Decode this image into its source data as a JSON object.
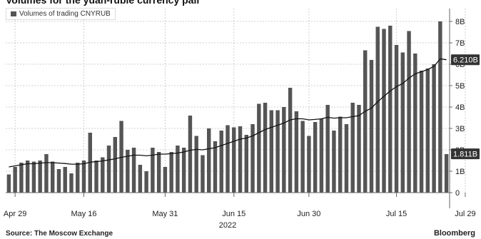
{
  "title": "Volumes for the yuan-ruble currency pair",
  "source": "Source: The Moscow Exchange",
  "brand": "Bloomberg",
  "chart_data": {
    "type": "bar",
    "legend": "Volumes of trading CNYRUB",
    "legend_position": "top-left",
    "grid": true,
    "y_axis_position": "right",
    "ylim": [
      0,
      8.6
    ],
    "yticks": [
      0,
      1,
      2,
      3,
      4,
      5,
      6,
      7,
      8
    ],
    "ytick_labels": [
      "0",
      "1B",
      "2B",
      "3B",
      "4B",
      "5B",
      "6B",
      "7B",
      "8B"
    ],
    "xtick_labels": [
      "Apr 29",
      "May 16",
      "May 31",
      "Jun 15",
      "Jun 30",
      "Jul 15",
      "Jul 29"
    ],
    "xtick_bar_index": [
      1,
      12,
      25,
      36,
      48,
      62,
      73
    ],
    "year_label": "2022",
    "values": [
      0.85,
      1.2,
      1.4,
      1.5,
      1.45,
      1.5,
      1.8,
      1.45,
      1.1,
      1.2,
      0.9,
      1.4,
      1.5,
      2.8,
      1.5,
      1.65,
      2.2,
      2.6,
      3.35,
      2.0,
      2.1,
      1.3,
      1.0,
      2.1,
      1.9,
      1.2,
      1.9,
      2.2,
      2.1,
      3.6,
      2.65,
      1.75,
      3.0,
      2.4,
      2.9,
      3.15,
      3.05,
      3.1,
      2.7,
      3.2,
      4.15,
      4.2,
      3.85,
      3.85,
      4.0,
      4.9,
      3.8,
      3.35,
      2.65,
      3.3,
      3.45,
      4.1,
      2.9,
      3.55,
      3.2,
      4.2,
      4.1,
      6.65,
      6.2,
      7.75,
      7.65,
      7.8,
      6.9,
      6.55,
      7.55,
      6.5,
      5.7,
      5.8,
      6.0,
      8.0,
      1.8
    ],
    "moving_average": [
      1.2,
      1.25,
      1.3,
      1.35,
      1.35,
      1.38,
      1.4,
      1.4,
      1.38,
      1.36,
      1.33,
      1.33,
      1.35,
      1.42,
      1.45,
      1.48,
      1.53,
      1.58,
      1.65,
      1.7,
      1.75,
      1.75,
      1.72,
      1.75,
      1.8,
      1.8,
      1.82,
      1.85,
      1.9,
      1.98,
      2.02,
      2.0,
      2.05,
      2.1,
      2.2,
      2.3,
      2.4,
      2.5,
      2.55,
      2.65,
      2.8,
      2.95,
      3.05,
      3.15,
      3.25,
      3.4,
      3.45,
      3.45,
      3.4,
      3.42,
      3.45,
      3.52,
      3.48,
      3.5,
      3.5,
      3.55,
      3.6,
      3.8,
      3.95,
      4.25,
      4.5,
      4.75,
      4.95,
      5.1,
      5.35,
      5.55,
      5.65,
      5.75,
      5.9,
      6.25,
      6.21
    ],
    "last_value_labels": [
      {
        "value": 6.21,
        "label": "6.210B",
        "series": "moving_average"
      },
      {
        "value": 1.811,
        "label": "1.811B",
        "series": "volume"
      }
    ],
    "colors": {
      "bars": "#555555",
      "line": "#111111",
      "grid": "#cfcfcf",
      "axis": "#666666",
      "label_bg": "#333333",
      "label_text": "#ffffff"
    }
  }
}
